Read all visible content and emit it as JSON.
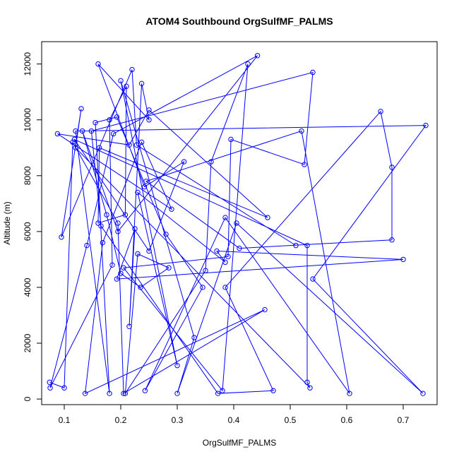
{
  "chart_data": {
    "type": "line",
    "title": "ATOM4 Southbound OrgSulfMF_PALMS",
    "xlabel": "OrgSulfMF_PALMS",
    "ylabel": "Altitude (m)",
    "xlim": [
      0.06,
      0.76
    ],
    "ylim": [
      -200,
      12800
    ],
    "x_ticks": [
      0.1,
      0.2,
      0.3,
      0.4,
      0.5,
      0.6,
      0.7
    ],
    "x_tick_labels": [
      "0.1",
      "0.2",
      "0.3",
      "0.4",
      "0.5",
      "0.6",
      "0.7"
    ],
    "y_ticks": [
      0,
      2000,
      4000,
      6000,
      8000,
      10000,
      12000
    ],
    "y_tick_labels": [
      "0",
      "2000",
      "4000",
      "6000",
      "8000",
      "10000",
      "12000"
    ],
    "grid": false,
    "legend": "none",
    "line_color": "#0000ff",
    "marker": "open-circle",
    "series": [
      {
        "x": [
          0.074,
          0.1,
          0.115,
          0.195,
          0.205,
          0.455,
          0.137,
          0.168,
          0.237,
          0.29,
          0.088,
          0.215,
          0.25,
          0.46,
          0.162,
          0.16,
          0.208,
          0.21,
          0.18,
          0.185,
          0.075,
          0.14,
          0.187,
          0.442,
          0.195,
          0.132,
          0.175,
          0.2,
          0.235,
          0.285,
          0.23,
          0.208,
          0.35,
          0.36,
          0.425,
          0.38,
          0.205,
          0.39,
          0.395,
          0.525,
          0.54,
          0.148,
          0.165,
          0.372,
          0.47,
          0.385,
          0.66,
          0.68,
          0.68,
          0.41,
          0.245,
          0.52,
          0.605,
          0.385,
          0.243,
          0.345,
          0.28,
          0.193,
          0.155,
          0.18,
          0.12,
          0.74,
          0.54,
          0.735,
          0.405,
          0.3,
          0.33,
          0.2,
          0.3,
          0.23,
          0.385,
          0.37,
          0.7,
          0.193,
          0.225,
          0.215,
          0.237,
          0.25,
          0.16,
          0.242,
          0.312,
          0.25,
          0.118,
          0.53,
          0.53,
          0.535,
          0.12,
          0.13,
          0.095,
          0.22,
          0.228,
          0.51
        ],
        "y": [
          600,
          400,
          9200,
          6300,
          200,
          3200,
          200,
          5600,
          9200,
          6800,
          9500,
          9100,
          10350,
          6500,
          9000,
          6300,
          6600,
          11200,
          10000,
          4800,
          400,
          5500,
          9500,
          12300,
          6000,
          9600,
          6600,
          4500,
          4000,
          4700,
          5200,
          200,
          4600,
          8500,
          12000,
          300,
          4700,
          5100,
          9300,
          8400,
          11700,
          9600,
          6200,
          200,
          300,
          4000,
          10300,
          8300,
          5700,
          5400,
          7800,
          9600,
          200,
          6500,
          300,
          4000,
          5900,
          10100,
          9900,
          200,
          9600,
          9800,
          4300,
          200,
          6300,
          200,
          2200,
          11400,
          1200,
          7400,
          4900,
          5300,
          5000,
          4300,
          6100,
          2600,
          11300,
          10000,
          12000,
          7600,
          8500,
          5300,
          9300,
          5500,
          600,
          400,
          9000,
          10400,
          5800,
          11800,
          9100,
          5500
        ]
      }
    ]
  }
}
